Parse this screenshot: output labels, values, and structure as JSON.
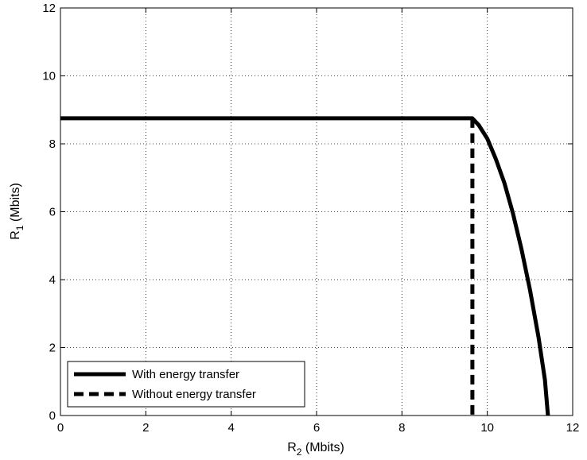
{
  "chart_data": {
    "type": "line",
    "title": "",
    "xlabel": "R",
    "xlabel_sub": "2",
    "xlabel_unit": " (Mbits)",
    "ylabel": "R",
    "ylabel_sub": "1",
    "ylabel_unit": " (Mbits)",
    "xlim": [
      0,
      12
    ],
    "ylim": [
      0,
      12
    ],
    "xticks": [
      "0",
      "2",
      "4",
      "6",
      "8",
      "10",
      "12"
    ],
    "yticks": [
      "0",
      "2",
      "4",
      "6",
      "8",
      "10",
      "12"
    ],
    "grid": true,
    "legend_position": "bottom-left",
    "series": [
      {
        "name": "With energy transfer",
        "style": "solid",
        "color": "#000000",
        "points": [
          [
            0,
            8.75
          ],
          [
            9.65,
            8.75
          ],
          [
            9.8,
            8.55
          ],
          [
            10.0,
            8.15
          ],
          [
            10.2,
            7.55
          ],
          [
            10.4,
            6.85
          ],
          [
            10.6,
            5.95
          ],
          [
            10.8,
            4.9
          ],
          [
            11.0,
            3.7
          ],
          [
            11.2,
            2.3
          ],
          [
            11.35,
            1.05
          ],
          [
            11.42,
            0
          ]
        ]
      },
      {
        "name": "Without energy transfer",
        "style": "dashed",
        "color": "#000000",
        "points": [
          [
            9.65,
            8.75
          ],
          [
            9.65,
            0
          ]
        ]
      }
    ]
  }
}
